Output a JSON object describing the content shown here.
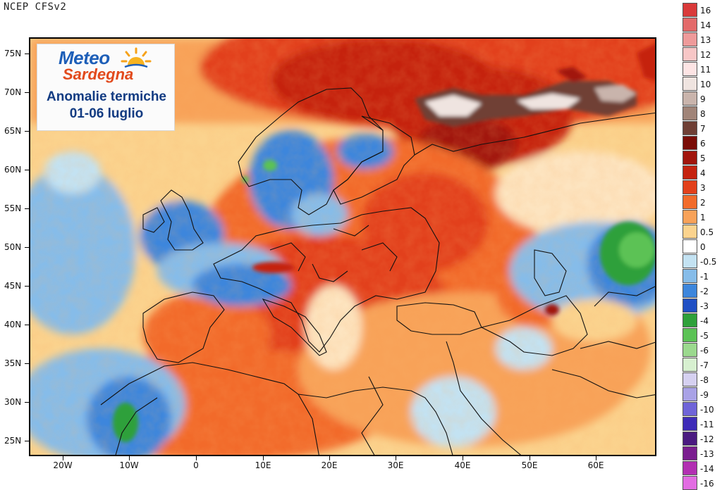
{
  "header": {
    "title": "NCEP  CFSv2"
  },
  "logo": {
    "brand_top": "Meteo",
    "brand_bottom": "Sardegna",
    "line1": "Anomalie termiche",
    "line2": "01-06 luglio"
  },
  "axes": {
    "lat_labels": [
      "75N",
      "70N",
      "65N",
      "60N",
      "55N",
      "50N",
      "45N",
      "40N",
      "35N",
      "30N",
      "25N"
    ],
    "lon_labels": [
      "20W",
      "10W",
      "0",
      "10E",
      "20E",
      "30E",
      "40E",
      "50E",
      "60E"
    ]
  },
  "colorbar": {
    "labels": [
      "16",
      "14",
      "13",
      "12",
      "11",
      "10",
      "9",
      "8",
      "7",
      "6",
      "5",
      "4",
      "3",
      "2",
      "1",
      "0.5",
      "0",
      "-0.5",
      "-1",
      "-2",
      "-3",
      "-4",
      "-5",
      "-6",
      "-7",
      "-8",
      "-9",
      "-10",
      "-11",
      "-12",
      "-13",
      "-14",
      "-16"
    ],
    "colors": [
      "#d93a3a",
      "#e36a6a",
      "#ee9a9a",
      "#f7c6c6",
      "#fde4e4",
      "#efe4e0",
      "#c9b4ac",
      "#a08478",
      "#6f3f35",
      "#7a0c06",
      "#a1150c",
      "#c5230f",
      "#e2401a",
      "#f26b2a",
      "#f8a259",
      "#fbd38e",
      "#ffffff",
      "#c3e2f2",
      "#86bce9",
      "#3d86dc",
      "#1f4fc4",
      "#2ea03a",
      "#5bc255",
      "#9bd98e",
      "#d7f0d0",
      "#d5d0f0",
      "#a9a2e6",
      "#6f64d8",
      "#3e2bb8",
      "#4a1a80",
      "#7a1d8f",
      "#b22fb2",
      "#e26ce2"
    ]
  },
  "colors": {
    "ocean_base": "#fde8b6",
    "land_warm": "#f0742c",
    "cold": "#3d86dc",
    "very_warm": "#7a0c06"
  }
}
